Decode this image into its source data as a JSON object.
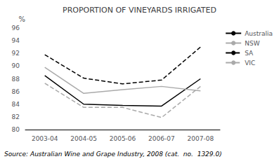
{
  "chart_data": {
    "type": "line",
    "title": "PROPORTION OF VINEYARDS IRRIGATED",
    "y_label": "%",
    "annotations": [
      "Source: Australian Wine and Grape Industry, 2008 (cat.  no.  1329.0)"
    ],
    "categories": [
      "2003-04",
      "2004-05",
      "2005-06",
      "2006-07",
      "2007-08"
    ],
    "series": [
      {
        "name": "Australia",
        "color": "#000000",
        "line_style": "solid",
        "values": [
          88.5,
          84.0,
          83.8,
          83.7,
          88.0
        ]
      },
      {
        "name": "NSW",
        "color": "#aaaaaa",
        "line_style": "solid",
        "values": [
          89.8,
          85.7,
          86.3,
          86.8,
          86.1
        ]
      },
      {
        "name": "SA",
        "color": "#000000",
        "line_style": "dashed",
        "values": [
          91.8,
          88.1,
          87.2,
          87.8,
          93.0
        ]
      },
      {
        "name": "VIC",
        "color": "#aaaaaa",
        "line_style": "dashed",
        "values": [
          87.3,
          83.5,
          83.5,
          81.9,
          86.8
        ]
      }
    ],
    "ylim": [
      80,
      96
    ],
    "yticks": [
      80,
      82,
      84,
      86,
      88,
      90,
      92,
      94,
      96
    ],
    "grid": false,
    "legend": "upper right"
  }
}
